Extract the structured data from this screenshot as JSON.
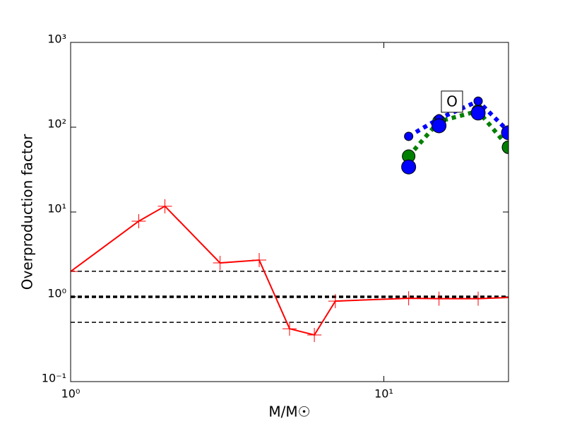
{
  "chart_data": {
    "type": "line",
    "xlabel": "M/M☉",
    "ylabel": "Overproduction factor",
    "xscale": "log",
    "yscale": "log",
    "xlim": [
      1,
      25
    ],
    "ylim": [
      0.1,
      1000
    ],
    "xticks": [
      {
        "value": 1,
        "label": "10⁰"
      },
      {
        "value": 10,
        "label": "10¹"
      }
    ],
    "yticks": [
      {
        "value": 0.1,
        "label": "10⁻¹"
      },
      {
        "value": 1,
        "label": "10⁰"
      },
      {
        "value": 10,
        "label": "10¹"
      },
      {
        "value": 100,
        "label": "10²"
      },
      {
        "value": 1000,
        "label": "10³"
      }
    ],
    "reference_lines": [
      {
        "value": 2,
        "color": "#000000",
        "width": 1.5
      },
      {
        "value": 1,
        "color": "#000000",
        "width": 3.5
      },
      {
        "value": 0.5,
        "color": "#000000",
        "width": 1.5
      }
    ],
    "series": [
      {
        "color": "#ff0000",
        "line": "solid",
        "marker": "plus",
        "marker_size": 10,
        "x": [
          1,
          1.65,
          2,
          3,
          4,
          5,
          6,
          7,
          12,
          15,
          20,
          25
        ],
        "values": [
          1.99,
          7.8,
          11.7,
          2.51,
          2.71,
          0.42,
          0.355,
          0.89,
          0.96,
          0.95,
          0.95,
          0.98
        ]
      },
      {
        "color": "#008000",
        "line": "dotted",
        "marker": "circle",
        "marker_size": 9,
        "x": [
          12,
          15,
          20,
          25
        ],
        "values": [
          45.5,
          117,
          155,
          58
        ]
      },
      {
        "color": "#0000ff",
        "line": "dotted",
        "marker": "circle",
        "marker_size": 6,
        "x": [
          12,
          15,
          20,
          25
        ],
        "values": [
          78,
          126,
          203,
          89
        ]
      },
      {
        "color": "#0000ff",
        "line": "none",
        "marker": "circle",
        "marker_size": 10,
        "x": [
          12,
          15,
          20,
          25
        ],
        "values": [
          34,
          104,
          147,
          86
        ]
      }
    ],
    "annotations": [
      {
        "text": "O",
        "x": 16.5,
        "y": 200
      }
    ]
  }
}
